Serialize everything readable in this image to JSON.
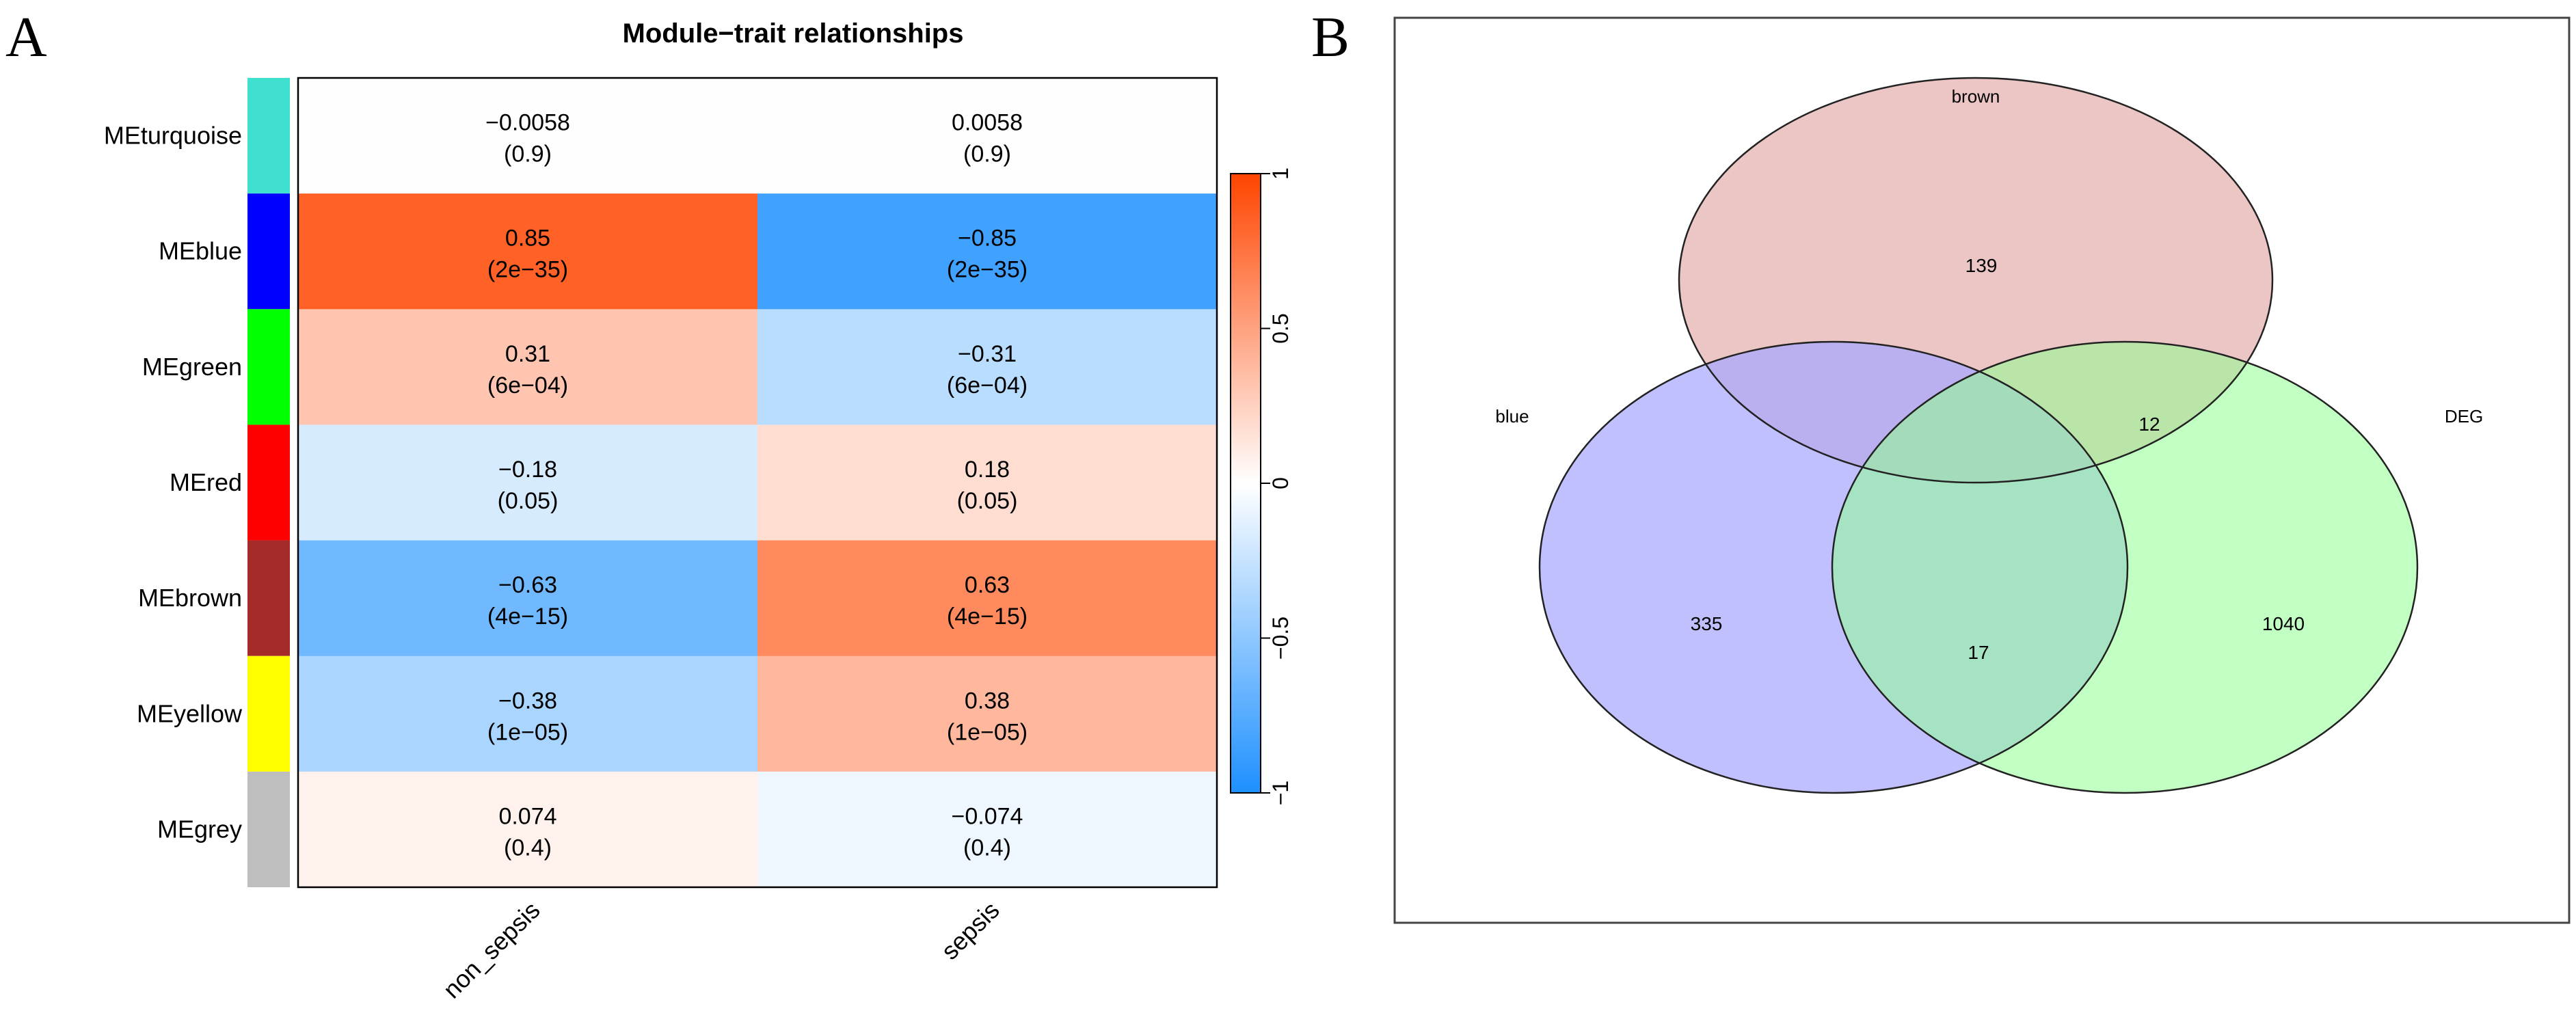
{
  "panels": {
    "a": "A",
    "b": "B"
  },
  "chart_data": [
    {
      "type": "heatmap",
      "title": "Module−trait relationships",
      "rows": [
        "MEturquoise",
        "MEblue",
        "MEgreen",
        "MEred",
        "MEbrown",
        "MEyellow",
        "MEgrey"
      ],
      "row_colors": [
        "#40E0D0",
        "#0000FF",
        "#00FF00",
        "#FF0000",
        "#A52A2A",
        "#FFFF00",
        "#BEBEBE"
      ],
      "columns": [
        "non_sepsis",
        "sepsis"
      ],
      "values": [
        [
          -0.0058,
          0.0058
        ],
        [
          0.85,
          -0.85
        ],
        [
          0.31,
          -0.31
        ],
        [
          -0.18,
          0.18
        ],
        [
          -0.63,
          0.63
        ],
        [
          -0.38,
          0.38
        ],
        [
          0.074,
          -0.074
        ]
      ],
      "labels": [
        [
          "−0.0058",
          "0.0058"
        ],
        [
          "0.85",
          "−0.85"
        ],
        [
          "0.31",
          "−0.31"
        ],
        [
          "−0.18",
          "0.18"
        ],
        [
          "−0.63",
          "0.63"
        ],
        [
          "−0.38",
          "0.38"
        ],
        [
          "0.074",
          "−0.074"
        ]
      ],
      "pvalues": [
        [
          "(0.9)",
          "(0.9)"
        ],
        [
          "(2e−35)",
          "(2e−35)"
        ],
        [
          "(6e−04)",
          "(6e−04)"
        ],
        [
          "(0.05)",
          "(0.05)"
        ],
        [
          "(4e−15)",
          "(4e−15)"
        ],
        [
          "(1e−05)",
          "(1e−05)"
        ],
        [
          "(0.4)",
          "(0.4)"
        ]
      ],
      "color_scale": {
        "min": -1,
        "max": 1,
        "low": "#1E90FF",
        "mid": "#FFFFFF",
        "high": "#FF4500"
      },
      "colorbar_ticks": [
        -1,
        -0.5,
        0,
        0.5,
        1
      ],
      "colorbar_tick_labels": [
        "−1",
        "−0.5",
        "0",
        "0.5",
        "1"
      ]
    },
    {
      "type": "venn",
      "sets": [
        {
          "name": "brown",
          "color": "#E8B8B8"
        },
        {
          "name": "blue",
          "color": "#A8A8FF"
        },
        {
          "name": "DEG",
          "color": "#90FF90"
        }
      ],
      "counts": [
        {
          "sets": [
            "brown"
          ],
          "value": "139"
        },
        {
          "sets": [
            "blue"
          ],
          "value": "335"
        },
        {
          "sets": [
            "DEG"
          ],
          "value": "1040"
        },
        {
          "sets": [
            "brown",
            "DEG"
          ],
          "value": "12"
        },
        {
          "sets": [
            "blue",
            "DEG"
          ],
          "value": "17"
        }
      ]
    }
  ]
}
